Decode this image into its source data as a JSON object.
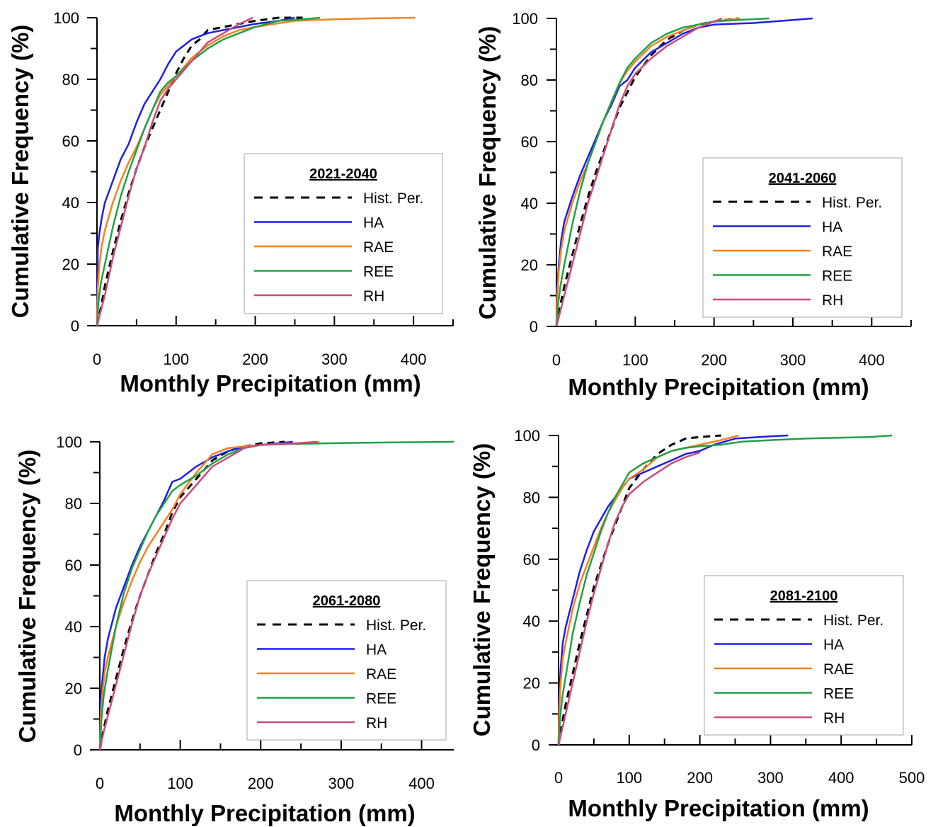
{
  "chart_data": [
    {
      "type": "line",
      "legend_title": "2021-2040",
      "xlabel": "Monthly Precipitation (mm)",
      "ylabel": "Cumulative Frequency (%)",
      "xlim": [
        0,
        450
      ],
      "ylim": [
        0,
        100
      ],
      "x_ticks": [
        "0",
        "100",
        "200",
        "300",
        "400"
      ],
      "y_ticks": [
        "0",
        "20",
        "40",
        "60",
        "80",
        "100"
      ],
      "legend_position": "center-right",
      "series": [
        {
          "name": "Hist. Per.",
          "color": "#000000",
          "dash": true,
          "x": [
            0,
            5,
            10,
            20,
            30,
            40,
            50,
            60,
            70,
            80,
            90,
            100,
            110,
            120,
            130,
            140,
            160,
            180,
            200,
            230,
            260
          ],
          "y": [
            0,
            6,
            13,
            24,
            34,
            43,
            51,
            58,
            64,
            70,
            76,
            82,
            87,
            91,
            93,
            96,
            97,
            98,
            99,
            100,
            100
          ]
        },
        {
          "name": "HA",
          "color": "#1f1fe6",
          "dash": false,
          "x": [
            0,
            1,
            3,
            6,
            10,
            20,
            30,
            40,
            50,
            60,
            70,
            80,
            90,
            100,
            110,
            120,
            140,
            160,
            180,
            200,
            230,
            250
          ],
          "y": [
            0,
            25,
            30,
            35,
            40,
            47,
            54,
            59,
            66,
            72,
            76,
            80,
            85,
            89,
            91,
            93,
            95,
            96,
            97,
            98,
            99,
            100
          ]
        },
        {
          "name": "RAE",
          "color": "#f58220",
          "dash": false,
          "x": [
            0,
            1,
            3,
            6,
            10,
            20,
            30,
            40,
            50,
            60,
            70,
            80,
            90,
            100,
            120,
            140,
            160,
            180,
            200,
            250,
            300,
            350,
            402
          ],
          "y": [
            0,
            12,
            20,
            26,
            31,
            40,
            47,
            53,
            58,
            64,
            70,
            75,
            78,
            81,
            87,
            91,
            94,
            96,
            97,
            99,
            99.5,
            99.8,
            100
          ]
        },
        {
          "name": "REE",
          "color": "#22a046",
          "dash": false,
          "x": [
            0,
            2,
            5,
            10,
            20,
            30,
            40,
            50,
            60,
            70,
            80,
            90,
            100,
            120,
            140,
            160,
            180,
            200,
            230,
            260,
            282
          ],
          "y": [
            0,
            8,
            14,
            20,
            32,
            42,
            50,
            57,
            64,
            70,
            76,
            79,
            81,
            86,
            90,
            93,
            95,
            97,
            99,
            99.5,
            100
          ]
        },
        {
          "name": "RH",
          "color": "#cc4b7e",
          "dash": false,
          "x": [
            0,
            5,
            10,
            20,
            30,
            40,
            50,
            60,
            70,
            80,
            90,
            100,
            120,
            140,
            160,
            180,
            197
          ],
          "y": [
            0,
            5,
            10,
            22,
            32,
            42,
            51,
            58,
            66,
            73,
            77,
            80,
            86,
            92,
            95,
            98,
            100
          ]
        }
      ]
    },
    {
      "type": "line",
      "legend_title": "2041-2060",
      "xlabel": "Monthly Precipitation (mm)",
      "ylabel": "Cumulative Frequency (%)",
      "xlim": [
        0,
        450
      ],
      "ylim": [
        0,
        100
      ],
      "x_ticks": [
        "0",
        "100",
        "200",
        "300",
        "400"
      ],
      "y_ticks": [
        "0",
        "20",
        "40",
        "60",
        "80",
        "100"
      ],
      "legend_position": "center-right",
      "series": [
        {
          "name": "Hist. Per.",
          "color": "#000000",
          "dash": true,
          "x": [
            0,
            5,
            10,
            20,
            30,
            40,
            50,
            60,
            70,
            80,
            90,
            100,
            120,
            140,
            160,
            180,
            200,
            230
          ],
          "y": [
            0,
            7,
            13,
            23,
            33,
            42,
            50,
            57,
            64,
            71,
            76,
            81,
            88,
            93,
            96,
            98,
            99,
            100
          ]
        },
        {
          "name": "HA",
          "color": "#1f1fe6",
          "dash": false,
          "x": [
            0,
            1,
            3,
            6,
            10,
            20,
            30,
            40,
            50,
            60,
            70,
            80,
            90,
            100,
            120,
            140,
            160,
            180,
            200,
            250,
            300,
            325
          ],
          "y": [
            0,
            12,
            20,
            28,
            34,
            42,
            49,
            55,
            61,
            67,
            72,
            78,
            80,
            84,
            89,
            92,
            95,
            97,
            98,
            98.5,
            99.5,
            100
          ]
        },
        {
          "name": "RAE",
          "color": "#f58220",
          "dash": false,
          "x": [
            0,
            1,
            3,
            6,
            10,
            20,
            30,
            40,
            50,
            60,
            70,
            80,
            90,
            100,
            120,
            140,
            160,
            180,
            200,
            233
          ],
          "y": [
            0,
            10,
            18,
            25,
            31,
            40,
            47,
            53,
            60,
            67,
            73,
            79,
            83,
            86,
            91,
            94,
            96,
            98,
            99,
            100
          ]
        },
        {
          "name": "REE",
          "color": "#22a046",
          "dash": false,
          "x": [
            0,
            2,
            5,
            10,
            20,
            30,
            40,
            50,
            60,
            70,
            80,
            90,
            100,
            120,
            140,
            160,
            180,
            200,
            230,
            270
          ],
          "y": [
            0,
            7,
            13,
            20,
            33,
            44,
            53,
            60,
            67,
            73,
            79,
            84,
            87,
            92,
            95,
            97,
            98,
            99,
            99.5,
            100
          ]
        },
        {
          "name": "RH",
          "color": "#cc4b7e",
          "dash": false,
          "x": [
            0,
            5,
            10,
            20,
            30,
            40,
            50,
            60,
            70,
            80,
            90,
            100,
            120,
            140,
            160,
            180,
            200,
            210
          ],
          "y": [
            0,
            5,
            10,
            20,
            30,
            40,
            48,
            56,
            64,
            72,
            78,
            82,
            87,
            91,
            94,
            97,
            99,
            100
          ]
        }
      ]
    },
    {
      "type": "line",
      "legend_title": "2061-2080",
      "xlabel": "Monthly Precipitation (mm)",
      "ylabel": "Cumulative Frequency (%)",
      "xlim": [
        0,
        440
      ],
      "ylim": [
        0,
        100
      ],
      "x_ticks": [
        "0",
        "100",
        "200",
        "300",
        "400"
      ],
      "y_ticks": [
        "0",
        "20",
        "40",
        "60",
        "80",
        "100"
      ],
      "legend_position": "center-right",
      "series": [
        {
          "name": "Hist. Per.",
          "color": "#000000",
          "dash": true,
          "x": [
            0,
            5,
            10,
            20,
            30,
            40,
            50,
            60,
            70,
            80,
            90,
            100,
            120,
            140,
            160,
            180,
            200,
            230
          ],
          "y": [
            0,
            7,
            13,
            23,
            33,
            42,
            50,
            57,
            64,
            70,
            77,
            82,
            88,
            94,
            97,
            98.5,
            99.5,
            100
          ]
        },
        {
          "name": "HA",
          "color": "#1f1fe6",
          "dash": false,
          "x": [
            0,
            1,
            3,
            6,
            10,
            20,
            30,
            40,
            50,
            60,
            70,
            80,
            90,
            100,
            120,
            140,
            160,
            180,
            200,
            220,
            240
          ],
          "y": [
            0,
            15,
            22,
            30,
            36,
            46,
            53,
            60,
            66,
            71,
            76,
            81,
            87,
            88,
            92,
            95,
            97,
            98.5,
            99,
            99.5,
            100
          ]
        },
        {
          "name": "RAE",
          "color": "#f58220",
          "dash": false,
          "x": [
            0,
            1,
            3,
            6,
            10,
            20,
            30,
            40,
            50,
            60,
            70,
            80,
            90,
            100,
            120,
            140,
            160,
            180,
            200,
            240,
            273
          ],
          "y": [
            0,
            10,
            18,
            25,
            30,
            40,
            48,
            55,
            61,
            66,
            70,
            74,
            78,
            83,
            90,
            96,
            98,
            98.5,
            99,
            99.5,
            100
          ]
        },
        {
          "name": "REE",
          "color": "#22a046",
          "dash": false,
          "x": [
            0,
            2,
            5,
            10,
            20,
            30,
            40,
            50,
            60,
            70,
            80,
            90,
            100,
            120,
            140,
            160,
            180,
            200,
            240,
            300,
            360,
            440
          ],
          "y": [
            0,
            10,
            18,
            26,
            40,
            51,
            59,
            65,
            71,
            76,
            80,
            84,
            86,
            89,
            93,
            96,
            98,
            99,
            99.3,
            99.6,
            99.8,
            100
          ]
        },
        {
          "name": "RH",
          "color": "#cc4b7e",
          "dash": false,
          "x": [
            0,
            5,
            10,
            20,
            30,
            40,
            50,
            60,
            70,
            80,
            90,
            100,
            120,
            140,
            160,
            180,
            200,
            240,
            270
          ],
          "y": [
            0,
            6,
            11,
            21,
            31,
            41,
            50,
            57,
            63,
            69,
            75,
            80,
            86,
            92,
            95,
            98,
            99,
            99.5,
            100
          ]
        }
      ]
    },
    {
      "type": "line",
      "legend_title": "2081-2100",
      "xlabel": "Monthly Precipitation (mm)",
      "ylabel": "Cumulative Frequency (%)",
      "xlim": [
        0,
        500
      ],
      "ylim": [
        0,
        100
      ],
      "x_ticks": [
        "0",
        "100",
        "200",
        "300",
        "400",
        "500"
      ],
      "y_ticks": [
        "0",
        "20",
        "40",
        "60",
        "80",
        "100"
      ],
      "legend_position": "center-right",
      "series": [
        {
          "name": "Hist. Per.",
          "color": "#000000",
          "dash": true,
          "x": [
            0,
            5,
            10,
            20,
            30,
            40,
            50,
            60,
            70,
            80,
            90,
            100,
            120,
            140,
            160,
            180,
            200,
            230
          ],
          "y": [
            0,
            7,
            13,
            23,
            33,
            42,
            51,
            58,
            65,
            71,
            77,
            83,
            89,
            94,
            97,
            99,
            99.5,
            100
          ]
        },
        {
          "name": "HA",
          "color": "#1f1fe6",
          "dash": false,
          "x": [
            0,
            1,
            3,
            6,
            10,
            20,
            30,
            40,
            50,
            60,
            70,
            80,
            90,
            100,
            120,
            140,
            160,
            180,
            200,
            220,
            250,
            300,
            325
          ],
          "y": [
            0,
            15,
            25,
            33,
            38,
            47,
            56,
            63,
            69,
            73,
            77,
            80,
            83,
            86,
            88,
            90,
            92,
            94,
            95,
            97,
            99,
            99.7,
            100
          ]
        },
        {
          "name": "RAE",
          "color": "#f58220",
          "dash": false,
          "x": [
            0,
            1,
            3,
            6,
            10,
            20,
            30,
            40,
            50,
            60,
            70,
            80,
            90,
            100,
            120,
            140,
            160,
            180,
            200,
            230,
            255
          ],
          "y": [
            0,
            12,
            20,
            28,
            33,
            44,
            52,
            58,
            64,
            70,
            75,
            79,
            83,
            86,
            89,
            93,
            95,
            96,
            97,
            98.5,
            100
          ]
        },
        {
          "name": "REE",
          "color": "#22a046",
          "dash": false,
          "x": [
            0,
            2,
            5,
            10,
            20,
            30,
            40,
            50,
            60,
            70,
            80,
            90,
            100,
            120,
            140,
            160,
            180,
            200,
            230,
            260,
            300,
            350,
            400,
            440,
            472
          ],
          "y": [
            0,
            8,
            15,
            22,
            36,
            46,
            55,
            62,
            69,
            75,
            80,
            84,
            88,
            91,
            93,
            95,
            96,
            96.5,
            97,
            98,
            98.5,
            99,
            99.3,
            99.5,
            100
          ]
        },
        {
          "name": "RH",
          "color": "#cc4b7e",
          "dash": false,
          "x": [
            0,
            5,
            10,
            20,
            30,
            40,
            50,
            60,
            70,
            80,
            90,
            100,
            120,
            140,
            160,
            180,
            200
          ],
          "y": [
            0,
            5,
            10,
            20,
            30,
            40,
            49,
            57,
            65,
            72,
            77,
            81,
            85,
            88,
            91,
            93,
            94.5
          ]
        }
      ]
    }
  ]
}
